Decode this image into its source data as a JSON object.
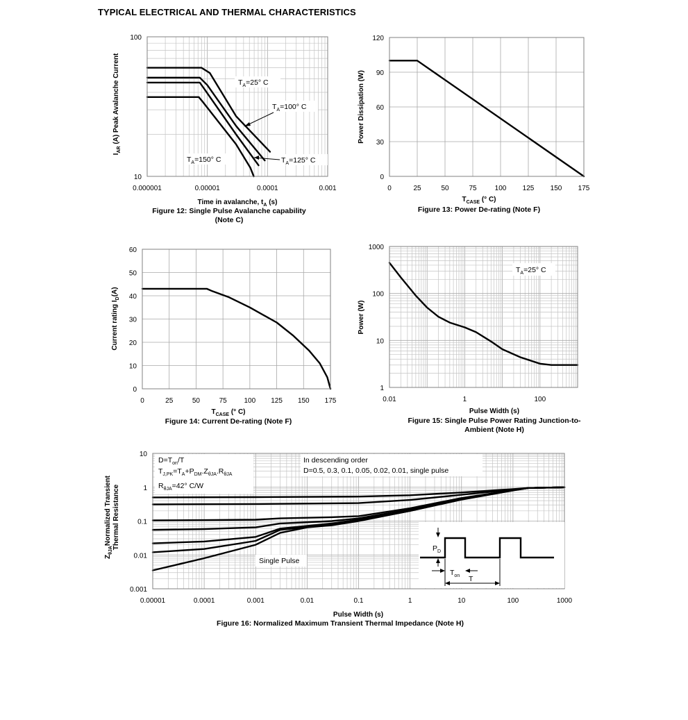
{
  "page_title": "TYPICAL ELECTRICAL AND THERMAL CHARACTERISTICS",
  "chart_data": [
    {
      "id": "fig12",
      "type": "line",
      "caption_line1": "Figure 12: Single Pulse Avalanche capability",
      "caption_line2": "(Note C)",
      "xlabel": "Time in avalanche, t",
      "xlabel_sub": "A",
      "xlabel_unit": " (s)",
      "ylabel": "I",
      "ylabel_sub": "AR",
      "ylabel_rest": " (A) Peak Avalanche Current",
      "x_scale": "log",
      "y_scale": "log",
      "xlim": [
        1e-06,
        0.001
      ],
      "ylim": [
        10,
        100
      ],
      "x_ticks": [
        "0.000001",
        "0.00001",
        "0.0001",
        "0.001"
      ],
      "y_ticks": [
        "10",
        "100"
      ],
      "grid": true,
      "series": [
        {
          "name": "TA=25° C",
          "x": [
            1e-06,
            8e-06,
            1.1e-05,
            3e-05,
            0.00011
          ],
          "y": [
            60,
            60,
            55,
            27,
            15
          ]
        },
        {
          "name": "TA=100° C",
          "x": [
            1e-06,
            7.5e-06,
            1e-05,
            3e-05,
            9e-05
          ],
          "y": [
            51,
            51,
            45,
            23,
            13
          ]
        },
        {
          "name": "TA=125° C",
          "x": [
            1e-06,
            7.5e-06,
            9e-06,
            3e-05,
            7.1e-05
          ],
          "y": [
            47,
            47,
            42,
            20,
            12
          ]
        },
        {
          "name": "TA=150° C",
          "x": [
            1e-06,
            7.2e-06,
            8.5e-06,
            3e-05,
            5.2e-05,
            5.9e-05
          ],
          "y": [
            37,
            37,
            34,
            17,
            11.5,
            10
          ]
        }
      ],
      "labels": [
        {
          "main": "T",
          "sub": "A",
          "rest": "=25° C"
        },
        {
          "main": "T",
          "sub": "A",
          "rest": "=100° C"
        },
        {
          "main": "T",
          "sub": "A",
          "rest": "=150° C"
        },
        {
          "main": "T",
          "sub": "A",
          "rest": "=125° C"
        }
      ]
    },
    {
      "id": "fig13",
      "type": "line",
      "caption_line1": "Figure 13: Power De-rating (Note F)",
      "xlabel": "T",
      "xlabel_sub": "CASE",
      "xlabel_unit": " (° C)",
      "ylabel": "Power Dissipation (W)",
      "xlim": [
        0,
        175
      ],
      "ylim": [
        0,
        120
      ],
      "x_ticks": [
        "0",
        "25",
        "50",
        "75",
        "100",
        "125",
        "150",
        "175"
      ],
      "y_ticks": [
        "0",
        "30",
        "60",
        "90",
        "120"
      ],
      "grid": true,
      "series": [
        {
          "x": [
            0,
            25,
            175
          ],
          "y": [
            100,
            100,
            0
          ]
        }
      ]
    },
    {
      "id": "fig14",
      "type": "line",
      "caption_line1": "Figure 14: Current De-rating (Note F)",
      "xlabel": "T",
      "xlabel_sub": "CASE",
      "xlabel_unit": " (° C)",
      "ylabel": "Current rating I",
      "ylabel_sub": "D",
      "ylabel_rest": "(A)",
      "xlim": [
        0,
        175
      ],
      "ylim": [
        0,
        60
      ],
      "x_ticks": [
        "0",
        "25",
        "50",
        "75",
        "100",
        "125",
        "150",
        "175"
      ],
      "y_ticks": [
        "0",
        "10",
        "20",
        "30",
        "40",
        "50",
        "60"
      ],
      "grid": true,
      "series": [
        {
          "x": [
            0,
            60,
            65,
            80,
            100,
            125,
            140,
            155,
            165,
            172,
            175
          ],
          "y": [
            43,
            43,
            42,
            39.5,
            35,
            28.5,
            23,
            16.5,
            11,
            5,
            0
          ]
        }
      ]
    },
    {
      "id": "fig15",
      "type": "line",
      "caption_line1": "Figure 15: Single Pulse Power Rating Junction-to-",
      "caption_line2": "Ambient (Note H)",
      "xlabel": "Pulse Width (s)",
      "ylabel": "Power (W)",
      "x_scale": "log",
      "y_scale": "log",
      "xlim": [
        0.01,
        1000
      ],
      "ylim": [
        1,
        1000
      ],
      "x_ticks": [
        "0.01",
        "1",
        "100"
      ],
      "y_ticks": [
        "1",
        "10",
        "100",
        "1000"
      ],
      "grid": true,
      "labels": [
        {
          "main": "T",
          "sub": "A",
          "rest": "=25° C"
        }
      ],
      "series": [
        {
          "x": [
            0.01,
            0.02,
            0.05,
            0.1,
            0.2,
            0.4,
            1,
            2,
            5,
            10,
            30,
            100,
            200,
            1000
          ],
          "y": [
            450,
            220,
            90,
            50,
            32,
            24,
            19,
            15,
            9.5,
            6.5,
            4.4,
            3.2,
            3,
            3
          ]
        }
      ]
    },
    {
      "id": "fig16",
      "type": "line",
      "caption_line1": "Figure 16: Normalized Maximum Transient Thermal Impedance (Note H)",
      "xlabel": "Pulse Width (s)",
      "ylabel_line1": "Normalized Transient",
      "ylabel_line2": "Thermal Resistance",
      "ylabel_prefix": "Z",
      "ylabel_prefix_sub": "θJA",
      "x_scale": "log",
      "y_scale": "log",
      "xlim": [
        1e-05,
        1000
      ],
      "ylim": [
        0.001,
        10
      ],
      "x_ticks": [
        "0.00001",
        "0.0001",
        "0.001",
        "0.01",
        "0.1",
        "1",
        "10",
        "100",
        "1000"
      ],
      "y_ticks": [
        "0.001",
        "0.01",
        "0.1",
        "1",
        "10"
      ],
      "grid": true,
      "series": [
        {
          "name": "D=0.5",
          "x": [
            1e-05,
            0.001,
            0.1,
            1,
            10,
            100,
            200,
            1000
          ],
          "y": [
            0.5,
            0.51,
            0.53,
            0.58,
            0.7,
            0.88,
            0.95,
            1.0
          ]
        },
        {
          "name": "D=0.3",
          "x": [
            1e-05,
            0.001,
            0.1,
            1,
            10,
            100,
            200,
            1000
          ],
          "y": [
            0.31,
            0.32,
            0.34,
            0.42,
            0.6,
            0.85,
            0.95,
            1.0
          ]
        },
        {
          "name": "D=0.1",
          "x": [
            1e-05,
            0.0001,
            0.001,
            0.003,
            0.03,
            0.1,
            1,
            10,
            100,
            200,
            1000
          ],
          "y": [
            0.105,
            0.107,
            0.11,
            0.12,
            0.13,
            0.14,
            0.24,
            0.48,
            0.82,
            0.95,
            1.0
          ]
        },
        {
          "name": "D=0.05",
          "x": [
            1e-05,
            0.0001,
            0.001,
            0.003,
            0.03,
            0.1,
            1,
            10,
            100,
            200,
            1000
          ],
          "y": [
            0.055,
            0.058,
            0.065,
            0.085,
            0.1,
            0.12,
            0.22,
            0.46,
            0.82,
            0.95,
            1.0
          ]
        },
        {
          "name": "D=0.02",
          "x": [
            1e-05,
            0.0001,
            0.001,
            0.003,
            0.03,
            0.1,
            1,
            10,
            100,
            200,
            1000
          ],
          "y": [
            0.022,
            0.025,
            0.034,
            0.06,
            0.085,
            0.11,
            0.21,
            0.45,
            0.82,
            0.95,
            1.0
          ]
        },
        {
          "name": "D=0.01",
          "x": [
            1e-05,
            0.0001,
            0.001,
            0.003,
            0.03,
            0.1,
            1,
            10,
            100,
            200,
            1000
          ],
          "y": [
            0.012,
            0.015,
            0.026,
            0.055,
            0.08,
            0.105,
            0.2,
            0.44,
            0.82,
            0.95,
            1.0
          ]
        },
        {
          "name": "single pulse",
          "x": [
            1e-05,
            0.0001,
            0.001,
            0.003,
            0.01,
            0.03,
            0.1,
            1,
            10,
            100,
            200,
            1000
          ],
          "y": [
            0.0035,
            0.008,
            0.02,
            0.045,
            0.065,
            0.075,
            0.1,
            0.2,
            0.43,
            0.8,
            0.95,
            1.0
          ]
        }
      ],
      "notes": {
        "duty": {
          "d": "D=T",
          "d_sub": "on",
          "d_rest": "/T"
        },
        "tj": {
          "a": "T",
          "a_sub": "J,PK",
          "b": "=T",
          "b_sub": "A",
          "c": "+P",
          "c_sub": "DM",
          "d": ".Z",
          "d_sub": "θJA",
          "e": ".R",
          "e_sub": "θJA"
        },
        "r": {
          "a": "R",
          "a_sub": "θJA",
          "b": "=42° C/W"
        },
        "order_line1": "In descending order",
        "order_line2": "D=0.5, 0.3, 0.1, 0.05, 0.02, 0.01, single pulse",
        "single_pulse": "Single Pulse",
        "pd": "P",
        "pd_sub": "D",
        "ton": "T",
        "ton_sub": "on",
        "t": "T"
      }
    }
  ]
}
